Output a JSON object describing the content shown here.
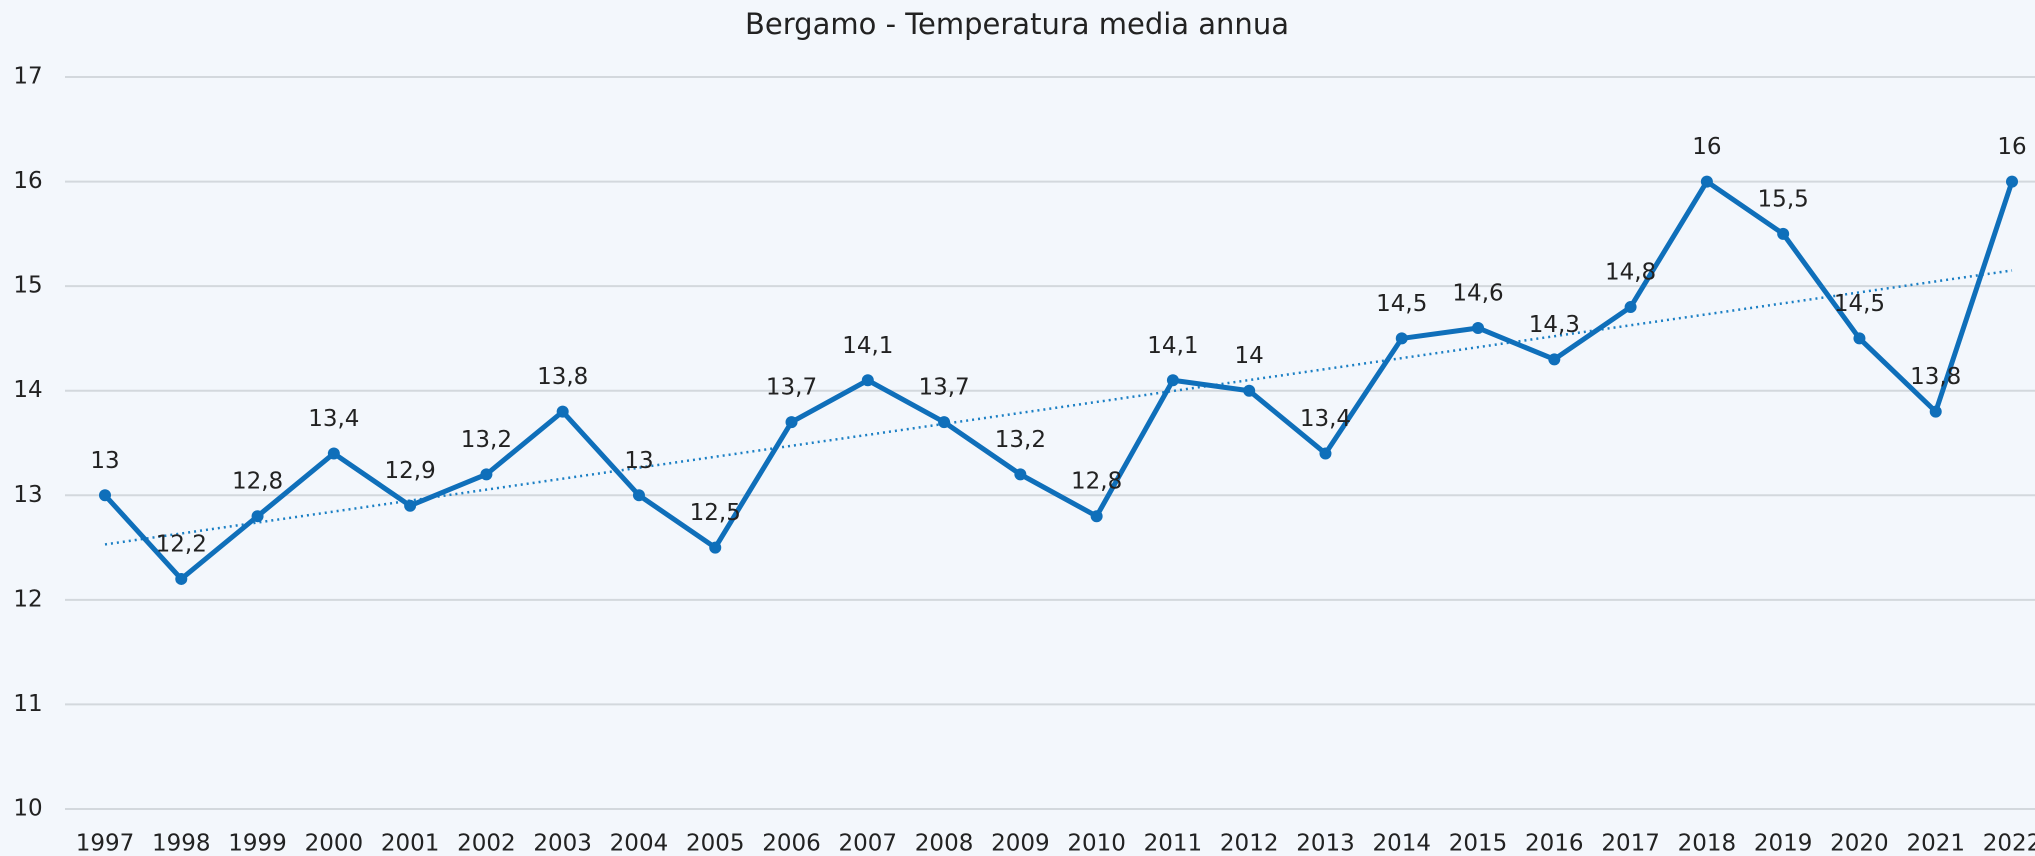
{
  "chart_data": {
    "type": "line",
    "title": "Bergamo - Temperatura media annua",
    "categories": [
      "1997",
      "1998",
      "1999",
      "2000",
      "2001",
      "2002",
      "2003",
      "2004",
      "2005",
      "2006",
      "2007",
      "2008",
      "2009",
      "2010",
      "2011",
      "2012",
      "2013",
      "2014",
      "2015",
      "2016",
      "2017",
      "2018",
      "2019",
      "2020",
      "2021",
      "2022"
    ],
    "series": [
      {
        "color": "#0f6fba",
        "values": [
          13,
          12.2,
          12.8,
          13.4,
          12.9,
          13.2,
          13.8,
          13,
          12.5,
          13.7,
          14.1,
          13.7,
          13.2,
          12.8,
          14.1,
          14,
          13.4,
          14.5,
          14.6,
          14.3,
          14.8,
          16,
          15.5,
          14.5,
          13.8,
          16
        ],
        "value_labels": [
          "13",
          "12,2",
          "12,8",
          "13,4",
          "12,9",
          "13,2",
          "13,8",
          "13",
          "12,5",
          "13,7",
          "14,1",
          "13,7",
          "13,2",
          "12,8",
          "14,1",
          "14",
          "13,4",
          "14,5",
          "14,6",
          "14,3",
          "14,8",
          "16",
          "15,5",
          "14,5",
          "13,8",
          "16"
        ]
      }
    ],
    "trendline": {
      "start": 12.53,
      "end": 15.15,
      "color": "#1b7fc4"
    },
    "ylim": [
      10,
      17
    ],
    "yticks": [
      10,
      11,
      12,
      13,
      14,
      15,
      16,
      17
    ],
    "grid": true
  }
}
